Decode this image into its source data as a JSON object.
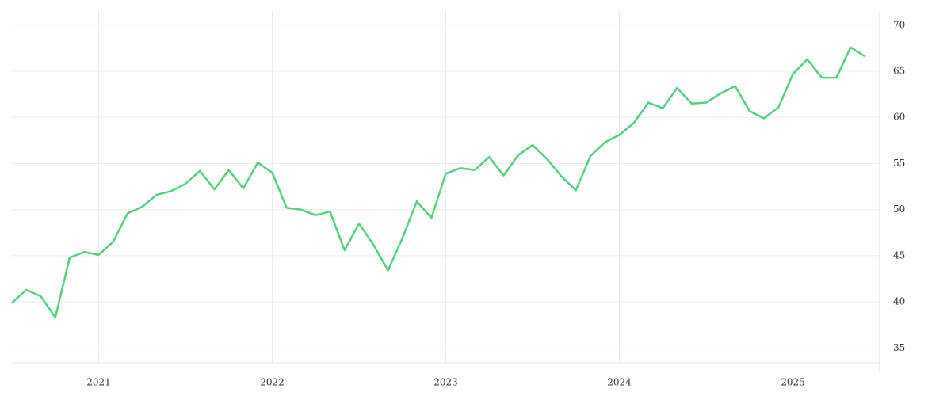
{
  "chart_data": {
    "type": "line",
    "x": [
      2020.5,
      2020.583,
      2020.667,
      2020.75,
      2020.833,
      2020.917,
      2021,
      2021.083,
      2021.167,
      2021.25,
      2021.333,
      2021.417,
      2021.5,
      2021.583,
      2021.667,
      2021.75,
      2021.833,
      2021.917,
      2022,
      2022.083,
      2022.167,
      2022.25,
      2022.333,
      2022.417,
      2022.5,
      2022.583,
      2022.667,
      2022.75,
      2022.833,
      2022.917,
      2023,
      2023.083,
      2023.167,
      2023.25,
      2023.333,
      2023.417,
      2023.5,
      2023.583,
      2023.667,
      2023.75,
      2023.833,
      2023.917,
      2024,
      2024.083,
      2024.167,
      2024.25,
      2024.333,
      2024.417,
      2024.5,
      2024.583,
      2024.667,
      2024.75,
      2024.833,
      2024.917,
      2025,
      2025.083,
      2025.167,
      2025.25,
      2025.333,
      2025.417
    ],
    "series": [
      {
        "color": "#52d17f",
        "values": [
          39.9,
          41.3,
          40.6,
          38.3,
          44.8,
          45.4,
          45.1,
          46.5,
          49.6,
          50.3,
          51.6,
          52.0,
          52.8,
          54.2,
          52.2,
          54.3,
          52.3,
          55.1,
          54.0,
          50.2,
          50.0,
          49.4,
          49.8,
          45.6,
          48.5,
          46.2,
          43.4,
          46.9,
          50.9,
          49.1,
          53.9,
          54.5,
          54.3,
          55.7,
          53.7,
          55.9,
          57.0,
          55.5,
          53.6,
          52.1,
          55.8,
          57.3,
          58.1,
          59.4,
          61.6,
          61.0,
          63.2,
          61.5,
          61.6,
          62.6,
          63.4,
          60.7,
          59.9,
          61.1,
          64.7,
          66.3,
          64.3,
          64.3,
          67.6,
          66.6
        ]
      }
    ],
    "xlim": [
      2020.5,
      2025.5
    ],
    "xticks": [
      2021,
      2022,
      2023,
      2024,
      2025
    ],
    "ylim": [
      33.4,
      71.7
    ],
    "yticks": [
      35,
      40,
      45,
      50,
      55,
      60,
      65,
      70
    ],
    "grid": true
  }
}
